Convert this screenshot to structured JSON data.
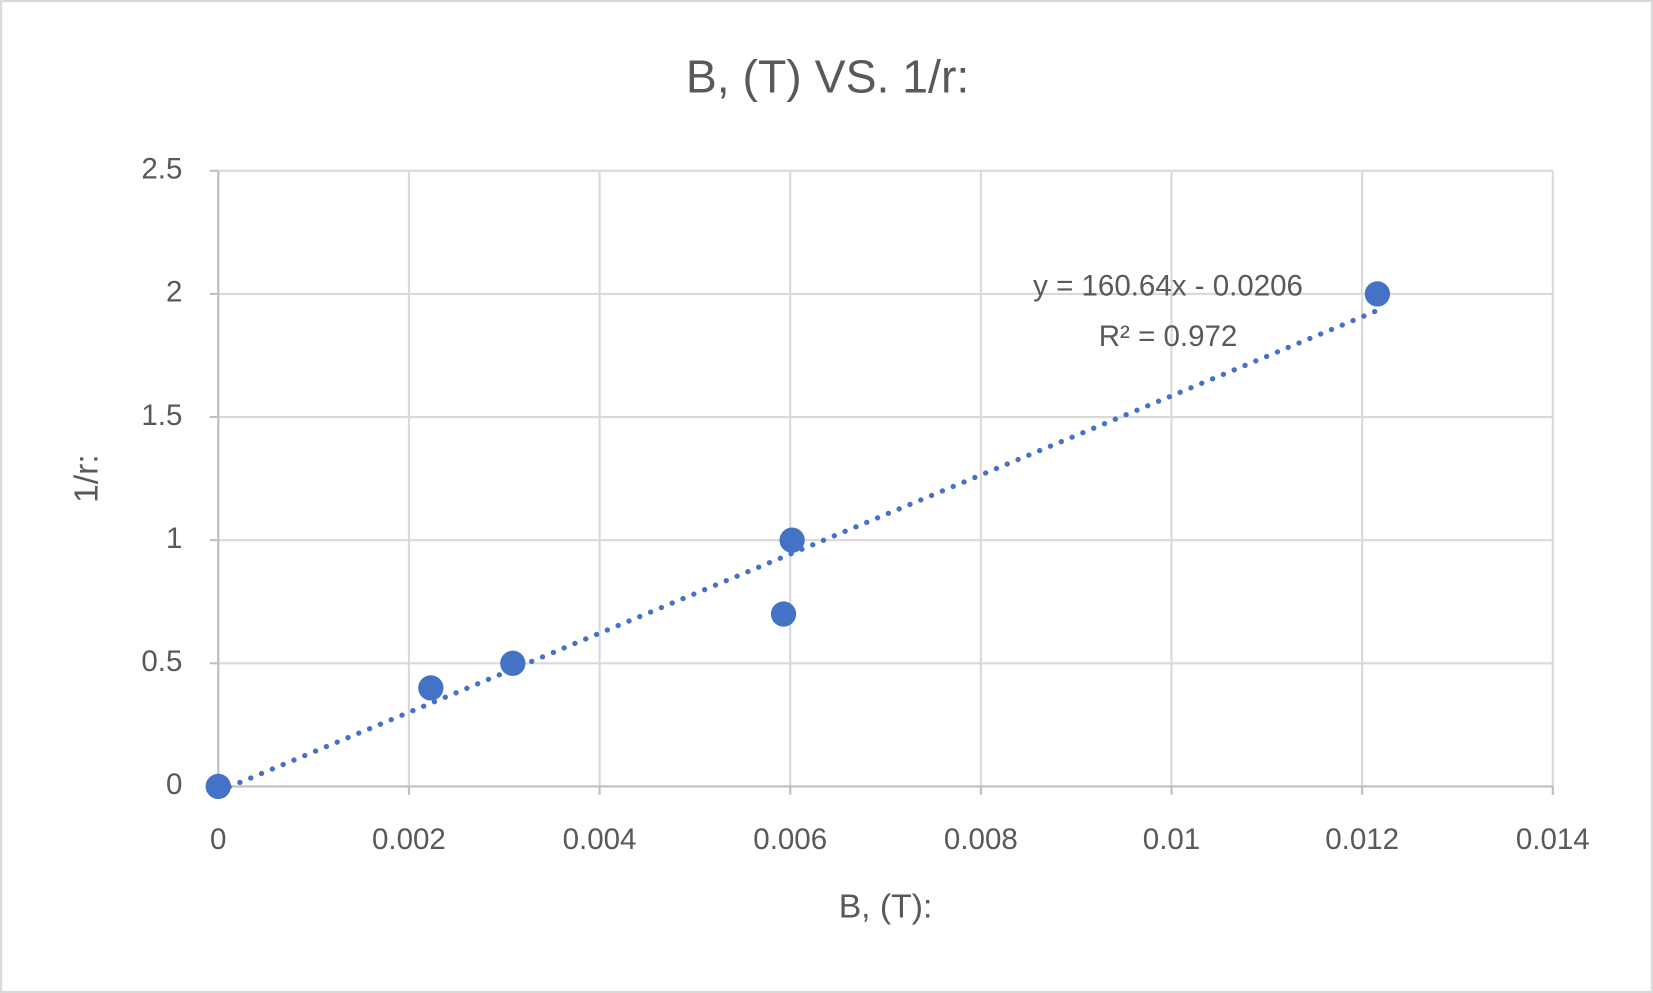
{
  "chart_data": {
    "type": "scatter",
    "title": "B, (T) VS. 1/r:",
    "x_label": "B, (T):",
    "y_label": "1/r:",
    "series": [
      {
        "name": "1/r:",
        "color": "#4472c4",
        "x": [
          0,
          0.00223,
          0.00309,
          0.00593,
          0.00602,
          0.01216
        ],
        "values": [
          0,
          0.4,
          0.5,
          0.7,
          1,
          2
        ]
      }
    ],
    "trendline": {
      "slope": 160.64,
      "intercept": -0.0206,
      "equation": "y = 160.64x - 0.0206",
      "r2_label": "R² = 0.972",
      "color": "#4472c4"
    },
    "xlim": [
      0,
      0.014
    ],
    "xticks": [
      0,
      0.002,
      0.004,
      0.006,
      0.008,
      0.01,
      0.012,
      0.014
    ],
    "ylim": [
      0,
      2.5
    ],
    "yticks": [
      0,
      0.5,
      1,
      1.5,
      2,
      2.5
    ],
    "grid": true
  }
}
